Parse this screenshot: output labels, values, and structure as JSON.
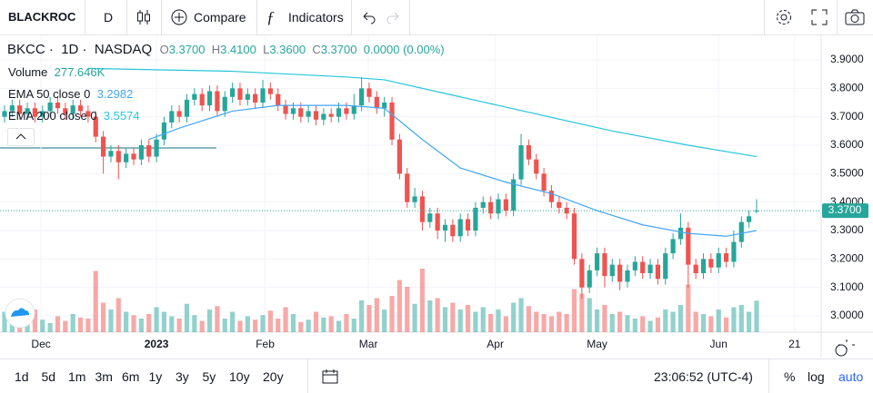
{
  "toolbar": {
    "symbol": "BLACKROC",
    "interval": "D",
    "compare": "Compare",
    "indicators": "Indicators"
  },
  "legend": {
    "symbol": "BKCC",
    "interval": "1D",
    "exchange": "NASDAQ",
    "o_label": "O",
    "o": "3.3700",
    "h_label": "H",
    "h": "3.4100",
    "l_label": "L",
    "l": "3.3600",
    "c_label": "C",
    "c": "3.3700",
    "change": "0.0000 (0.00%)",
    "volume_label": "Volume",
    "volume_value": "277.646K",
    "ema50_value": "3.2982",
    "ema200_value": "3.5574"
  },
  "chart_data": {
    "type": "candlestick",
    "up_color": "#26a69a",
    "down_color": "#ef5350",
    "ylim": [
      2.9426,
      3.983
    ],
    "yticks": [
      {
        "value": 3.9,
        "label": "3.9000"
      },
      {
        "value": 3.8,
        "label": "3.8000"
      },
      {
        "value": 3.7,
        "label": "3.7000"
      },
      {
        "value": 3.6,
        "label": "3.6000"
      },
      {
        "value": 3.5,
        "label": "3.5000"
      },
      {
        "value": 3.4,
        "label": "3.4000"
      },
      {
        "value": 3.3,
        "label": "3.3000"
      },
      {
        "value": 3.2,
        "label": "3.2000"
      },
      {
        "value": 3.1,
        "label": "3.1000"
      },
      {
        "value": 3.0,
        "label": "3.0000"
      }
    ],
    "xlim": [
      -0.6,
      107.5
    ],
    "xticks": [
      {
        "value": 4.8,
        "label": "Dec"
      },
      {
        "value": 20,
        "label": "2023"
      },
      {
        "value": 34.3,
        "label": "Feb"
      },
      {
        "value": 47.9,
        "label": "Mar"
      },
      {
        "value": 64.6,
        "label": "Apr"
      },
      {
        "value": 78,
        "label": "May"
      },
      {
        "value": 94,
        "label": "Jun"
      },
      {
        "value": 104,
        "label": "21"
      }
    ],
    "last_price": {
      "value": 3.37,
      "label": "3.3700"
    },
    "volume_lim": [
      0,
      640
    ],
    "candles": [
      [
        3.7,
        3.74,
        3.68,
        3.72
      ],
      [
        3.72,
        3.76,
        3.7,
        3.74
      ],
      [
        3.74,
        3.76,
        3.69,
        3.71
      ],
      [
        3.71,
        3.75,
        3.69,
        3.73
      ],
      [
        3.73,
        3.75,
        3.68,
        3.7
      ],
      [
        3.7,
        3.74,
        3.68,
        3.72
      ],
      [
        3.72,
        3.77,
        3.7,
        3.75
      ],
      [
        3.75,
        3.77,
        3.71,
        3.73
      ],
      [
        3.73,
        3.75,
        3.69,
        3.71
      ],
      [
        3.71,
        3.76,
        3.69,
        3.74
      ],
      [
        3.74,
        3.76,
        3.7,
        3.72
      ],
      [
        3.72,
        3.74,
        3.68,
        3.7
      ],
      [
        3.7,
        3.72,
        3.61,
        3.63
      ],
      [
        3.63,
        3.65,
        3.5,
        3.56
      ],
      [
        3.56,
        3.6,
        3.54,
        3.58
      ],
      [
        3.58,
        3.6,
        3.48,
        3.54
      ],
      [
        3.54,
        3.59,
        3.52,
        3.57
      ],
      [
        3.57,
        3.59,
        3.53,
        3.55
      ],
      [
        3.55,
        3.62,
        3.53,
        3.6
      ],
      [
        3.6,
        3.62,
        3.54,
        3.56
      ],
      [
        3.56,
        3.64,
        3.54,
        3.62
      ],
      [
        3.62,
        3.7,
        3.6,
        3.68
      ],
      [
        3.68,
        3.74,
        3.66,
        3.72
      ],
      [
        3.72,
        3.74,
        3.68,
        3.7
      ],
      [
        3.7,
        3.78,
        3.68,
        3.76
      ],
      [
        3.76,
        3.8,
        3.74,
        3.78
      ],
      [
        3.78,
        3.8,
        3.72,
        3.74
      ],
      [
        3.74,
        3.81,
        3.72,
        3.79
      ],
      [
        3.79,
        3.81,
        3.7,
        3.72
      ],
      [
        3.72,
        3.79,
        3.7,
        3.77
      ],
      [
        3.77,
        3.82,
        3.75,
        3.8
      ],
      [
        3.8,
        3.82,
        3.74,
        3.76
      ],
      [
        3.76,
        3.8,
        3.74,
        3.78
      ],
      [
        3.78,
        3.8,
        3.73,
        3.75
      ],
      [
        3.75,
        3.83,
        3.73,
        3.8
      ],
      [
        3.8,
        3.82,
        3.76,
        3.78
      ],
      [
        3.78,
        3.8,
        3.72,
        3.74
      ],
      [
        3.74,
        3.76,
        3.69,
        3.71
      ],
      [
        3.71,
        3.75,
        3.69,
        3.73
      ],
      [
        3.73,
        3.75,
        3.68,
        3.7
      ],
      [
        3.7,
        3.74,
        3.68,
        3.72
      ],
      [
        3.72,
        3.74,
        3.67,
        3.69
      ],
      [
        3.69,
        3.73,
        3.67,
        3.71
      ],
      [
        3.71,
        3.73,
        3.68,
        3.7
      ],
      [
        3.7,
        3.75,
        3.68,
        3.73
      ],
      [
        3.73,
        3.75,
        3.69,
        3.71
      ],
      [
        3.71,
        3.78,
        3.69,
        3.74
      ],
      [
        3.74,
        3.84,
        3.72,
        3.8
      ],
      [
        3.8,
        3.82,
        3.75,
        3.77
      ],
      [
        3.77,
        3.79,
        3.71,
        3.73
      ],
      [
        3.73,
        3.77,
        3.7,
        3.75
      ],
      [
        3.75,
        3.77,
        3.6,
        3.62
      ],
      [
        3.62,
        3.64,
        3.48,
        3.5
      ],
      [
        3.5,
        3.52,
        3.38,
        3.4
      ],
      [
        3.4,
        3.45,
        3.38,
        3.42
      ],
      [
        3.42,
        3.44,
        3.3,
        3.33
      ],
      [
        3.33,
        3.38,
        3.31,
        3.36
      ],
      [
        3.36,
        3.38,
        3.27,
        3.3
      ],
      [
        3.3,
        3.34,
        3.26,
        3.32
      ],
      [
        3.32,
        3.34,
        3.26,
        3.28
      ],
      [
        3.28,
        3.36,
        3.26,
        3.34
      ],
      [
        3.34,
        3.36,
        3.28,
        3.3
      ],
      [
        3.3,
        3.4,
        3.28,
        3.38
      ],
      [
        3.38,
        3.42,
        3.36,
        3.4
      ],
      [
        3.4,
        3.42,
        3.34,
        3.36
      ],
      [
        3.36,
        3.43,
        3.34,
        3.41
      ],
      [
        3.41,
        3.43,
        3.35,
        3.37
      ],
      [
        3.37,
        3.5,
        3.35,
        3.48
      ],
      [
        3.48,
        3.64,
        3.46,
        3.6
      ],
      [
        3.6,
        3.62,
        3.53,
        3.55
      ],
      [
        3.55,
        3.57,
        3.48,
        3.5
      ],
      [
        3.5,
        3.52,
        3.42,
        3.44
      ],
      [
        3.44,
        3.46,
        3.38,
        3.4
      ],
      [
        3.4,
        3.42,
        3.36,
        3.38
      ],
      [
        3.38,
        3.4,
        3.34,
        3.36
      ],
      [
        3.36,
        3.38,
        3.18,
        3.2
      ],
      [
        3.2,
        3.22,
        3.06,
        3.1
      ],
      [
        3.1,
        3.18,
        3.08,
        3.16
      ],
      [
        3.16,
        3.24,
        3.14,
        3.22
      ],
      [
        3.22,
        3.24,
        3.1,
        3.14
      ],
      [
        3.14,
        3.2,
        3.12,
        3.18
      ],
      [
        3.18,
        3.2,
        3.09,
        3.12
      ],
      [
        3.12,
        3.18,
        3.1,
        3.16
      ],
      [
        3.16,
        3.21,
        3.14,
        3.19
      ],
      [
        3.19,
        3.21,
        3.13,
        3.15
      ],
      [
        3.15,
        3.2,
        3.13,
        3.18
      ],
      [
        3.18,
        3.2,
        3.11,
        3.13
      ],
      [
        3.13,
        3.24,
        3.11,
        3.22
      ],
      [
        3.22,
        3.29,
        3.2,
        3.27
      ],
      [
        3.27,
        3.36,
        3.25,
        3.31
      ],
      [
        3.31,
        3.33,
        3.1,
        3.18
      ],
      [
        3.18,
        3.2,
        3.13,
        3.15
      ],
      [
        3.15,
        3.22,
        3.13,
        3.2
      ],
      [
        3.2,
        3.22,
        3.15,
        3.17
      ],
      [
        3.17,
        3.24,
        3.15,
        3.22
      ],
      [
        3.22,
        3.24,
        3.17,
        3.19
      ],
      [
        3.19,
        3.3,
        3.17,
        3.26
      ],
      [
        3.26,
        3.35,
        3.24,
        3.33
      ],
      [
        3.33,
        3.37,
        3.31,
        3.35
      ],
      [
        3.37,
        3.41,
        3.36,
        3.37
      ]
    ],
    "volumes": [
      180,
      150,
      120,
      90,
      200,
      110,
      80,
      140,
      100,
      160,
      130,
      120,
      540,
      260,
      200,
      300,
      180,
      150,
      120,
      160,
      220,
      180,
      140,
      120,
      250,
      150,
      100,
      200,
      230,
      120,
      180,
      100,
      140,
      110,
      150,
      190,
      120,
      220,
      160,
      90,
      110,
      180,
      130,
      140,
      100,
      160,
      120,
      280,
      240,
      300,
      200,
      320,
      460,
      400,
      250,
      560,
      280,
      300,
      220,
      260,
      200,
      240,
      180,
      220,
      160,
      200,
      140,
      260,
      300,
      230,
      180,
      160,
      140,
      180,
      160,
      380,
      340,
      300,
      200,
      240,
      160,
      180,
      150,
      120,
      140,
      100,
      130,
      200,
      180,
      240,
      420,
      180,
      160,
      140,
      200,
      130,
      220,
      240,
      180,
      277.646
    ],
    "series": [
      {
        "name": "EMA 50 close 0",
        "color": "#42a5f5",
        "x": [
          19,
          23,
          30,
          36,
          45,
          50,
          55,
          60,
          66,
          72,
          78,
          84,
          90,
          95,
          99
        ],
        "values": [
          3.62,
          3.66,
          3.72,
          3.74,
          3.74,
          3.73,
          3.62,
          3.52,
          3.47,
          3.43,
          3.37,
          3.32,
          3.29,
          3.28,
          3.3
        ]
      },
      {
        "name": "EMA 200 close 0",
        "color": "#26c6da",
        "x": [
          11,
          30,
          45,
          50,
          60,
          70,
          80,
          90,
          99
        ],
        "values": [
          3.87,
          3.86,
          3.84,
          3.83,
          3.77,
          3.71,
          3.65,
          3.6,
          3.56
        ]
      }
    ]
  },
  "bottom": {
    "ranges": [
      "1d",
      "5d",
      "1m",
      "3m",
      "6m",
      "1y",
      "3y",
      "5y",
      "10y",
      "20y"
    ],
    "time": "23:06:52 (UTC-4)",
    "percent": "%",
    "log": "log",
    "auto": "auto"
  }
}
